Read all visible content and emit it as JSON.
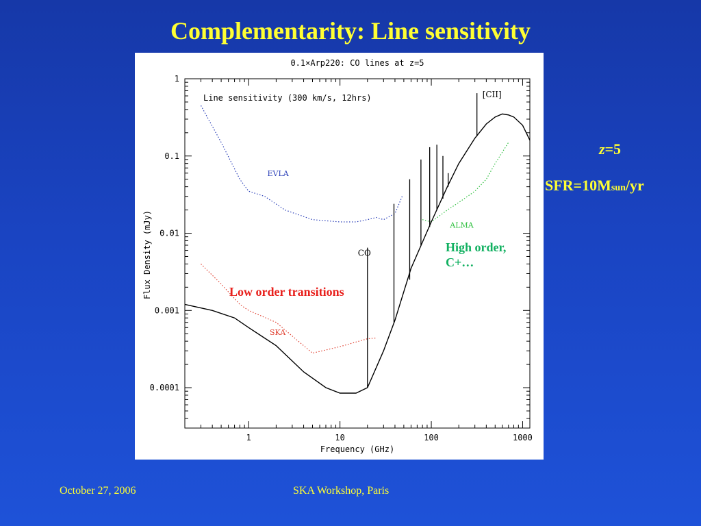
{
  "slide": {
    "title": "Complementarity: Line sensitivity",
    "side_z": "=5",
    "side_z_var": "z",
    "side_sfr_prefix": "SFR=10M",
    "side_sfr_sub": "sun",
    "side_sfr_suffix": "/yr",
    "footer_date": "October 27, 2006",
    "footer_event": "SKA Workshop, Paris",
    "colors": {
      "background": "#1a44c2",
      "title": "#ffff33",
      "low_order": "#e8201c",
      "high_order": "#10b060"
    }
  },
  "annotations": {
    "low_order": "Low order transitions",
    "high_order_1": "High order,",
    "high_order_2": "C+…"
  },
  "chart_data": {
    "type": "line",
    "title": "0.1×Arp220:  CO lines at z=5",
    "subtitle": "Line sensitivity (300 km/s, 12hrs)",
    "xlabel": "Frequency (GHz)",
    "ylabel": "Flux Density (mJy)",
    "x_scale": "log",
    "y_scale": "log",
    "xlim": [
      0.2,
      1200
    ],
    "ylim": [
      3e-05,
      1
    ],
    "x_ticks": [
      1,
      10,
      100,
      1000
    ],
    "x_tick_labels": [
      "1",
      "10",
      "100",
      "1000"
    ],
    "y_ticks": [
      1,
      0.1,
      0.01,
      0.001,
      0.0001
    ],
    "y_tick_labels": [
      "1",
      "0.1",
      "0.01",
      "0.001",
      "0.0001"
    ],
    "series": [
      {
        "name": "EVLA",
        "color": "#2a3fb8",
        "style": "dotted",
        "x": [
          0.3,
          0.5,
          0.8,
          1.0,
          1.5,
          2.5,
          5,
          10,
          15,
          20,
          25,
          30,
          40,
          48
        ],
        "y": [
          0.45,
          0.15,
          0.05,
          0.035,
          0.03,
          0.02,
          0.015,
          0.014,
          0.014,
          0.015,
          0.016,
          0.015,
          0.018,
          0.03
        ]
      },
      {
        "name": "SKA",
        "color": "#e04030",
        "style": "dotted",
        "x": [
          0.3,
          0.5,
          0.8,
          1.0,
          2.0,
          3.5,
          5,
          10,
          20,
          25
        ],
        "y": [
          0.004,
          0.0022,
          0.0012,
          0.001,
          0.0007,
          0.0004,
          0.00028,
          0.00034,
          0.00043,
          0.00044
        ],
        "x2": [
          1.0,
          2.0,
          3.5,
          5
        ]
      },
      {
        "name": "ALMA",
        "color": "#30c040",
        "style": "dotted",
        "x": [
          80,
          100,
          150,
          200,
          300,
          400,
          500,
          700
        ],
        "y": [
          0.015,
          0.014,
          0.02,
          0.025,
          0.035,
          0.05,
          0.08,
          0.15
        ]
      },
      {
        "name": "",
        "color": "#000000",
        "style": "solid",
        "x": [
          0.2,
          0.4,
          0.7,
          1,
          2,
          4,
          7,
          10,
          15,
          20,
          30,
          40,
          60,
          100,
          150,
          200,
          300,
          400,
          500,
          600,
          700,
          800,
          1000,
          1200
        ],
        "y": [
          0.0012,
          0.001,
          0.0008,
          0.0006,
          0.00035,
          0.00016,
          0.0001,
          8.5e-05,
          8.5e-05,
          0.0001,
          0.0003,
          0.00075,
          0.0035,
          0.014,
          0.04,
          0.08,
          0.17,
          0.26,
          0.32,
          0.35,
          0.34,
          0.32,
          0.25,
          0.16
        ]
      }
    ],
    "lines": [
      {
        "label": "CO",
        "x": 20,
        "y_top": 0.0065,
        "y_base": 0.0001
      },
      {
        "label": "",
        "x": 39,
        "y_top": 0.024,
        "y_base": 0.0007
      },
      {
        "label": "",
        "x": 58,
        "y_top": 0.05,
        "y_base": 0.0025
      },
      {
        "label": "",
        "x": 77,
        "y_top": 0.09,
        "y_base": 0.007
      },
      {
        "label": "",
        "x": 96,
        "y_top": 0.13,
        "y_base": 0.012
      },
      {
        "label": "",
        "x": 115,
        "y_top": 0.14,
        "y_base": 0.02
      },
      {
        "label": "",
        "x": 134,
        "y_top": 0.1,
        "y_base": 0.028
      },
      {
        "label": "",
        "x": 153,
        "y_top": 0.06,
        "y_base": 0.04
      },
      {
        "label": "[CII]",
        "x": 316,
        "y_top": 0.65,
        "y_base": 0.18
      }
    ],
    "grid": false
  }
}
